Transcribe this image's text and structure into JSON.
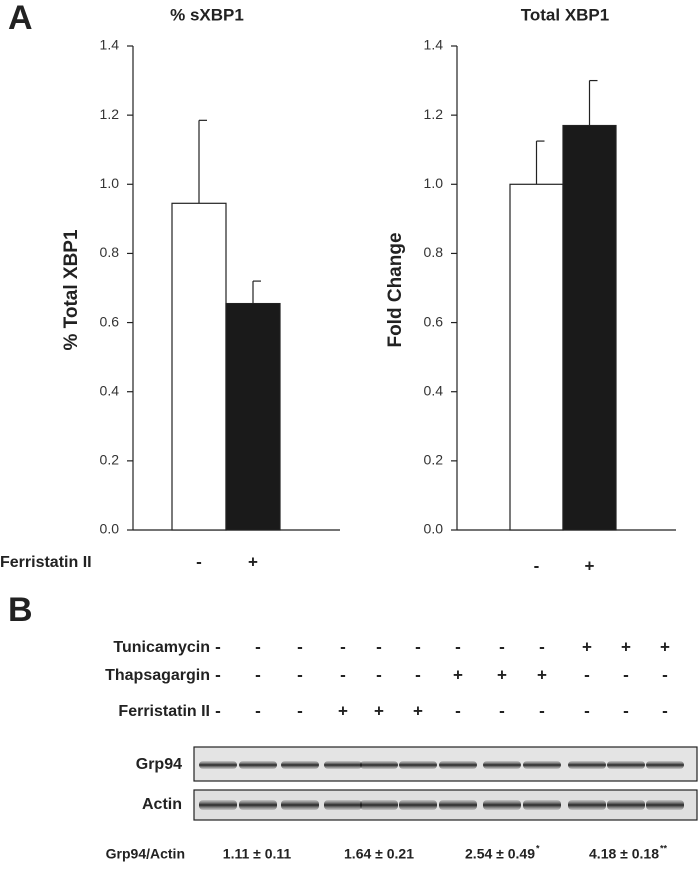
{
  "panel_labels": [
    "A",
    "B"
  ],
  "chart_data": [
    {
      "type": "bar",
      "title": "% sXBP1",
      "ylabel": "% Total XBP1",
      "xlabel": "Ferristatin II",
      "categories": [
        "-",
        "+"
      ],
      "values": [
        0.945,
        0.655
      ],
      "errors": [
        0.24,
        0.065
      ],
      "colors": [
        "#ffffff",
        "#1a1a1a"
      ],
      "ylim": [
        0,
        1.4
      ],
      "yticks": [
        {
          "value": 0,
          "label": "0.0"
        },
        0.2,
        0.4,
        0.6,
        0.8,
        {
          "value": 1,
          "label": "1.0"
        },
        1.2,
        1.4
      ]
    },
    {
      "type": "bar",
      "title": "Total XBP1",
      "ylabel": "Fold Change",
      "categories": [
        "-",
        "+"
      ],
      "values": [
        1.0,
        1.17
      ],
      "errors": [
        0.125,
        0.13
      ],
      "colors": [
        "#ffffff",
        "#1a1a1a"
      ],
      "ylim": [
        0,
        1.4
      ],
      "yticks": [
        {
          "value": 0,
          "label": "0.0"
        },
        0.2,
        0.4,
        0.6,
        0.8,
        {
          "value": 1,
          "label": "1.0"
        },
        1.2,
        1.4
      ]
    }
  ],
  "panel_b": {
    "rows": [
      {
        "label": "Tunicamycin",
        "lanes": [
          "-",
          "-",
          "-",
          "-",
          "-",
          "-",
          "-",
          "-",
          "-",
          "+",
          "+",
          "+"
        ]
      },
      {
        "label": "Thapsagargin",
        "lanes": [
          "-",
          "-",
          "-",
          "-",
          "-",
          "-",
          "+",
          "+",
          "+",
          "-",
          "-",
          "-"
        ]
      },
      {
        "label": "Ferristatin II",
        "lanes": [
          "-",
          "-",
          "-",
          "+",
          "+",
          "+",
          "-",
          "-",
          "-",
          "-",
          "-",
          "-"
        ]
      }
    ],
    "blots": [
      "Grp94",
      "Actin"
    ],
    "quant": {
      "label": "Grp94/Actin",
      "groups": [
        {
          "text": "1.11 ± 0.11"
        },
        {
          "text": "1.64 ± 0.21"
        },
        {
          "text": "2.54 ± 0.49",
          "note": "*"
        },
        {
          "text": "4.18 ± 0.18",
          "note": "**"
        }
      ]
    }
  }
}
